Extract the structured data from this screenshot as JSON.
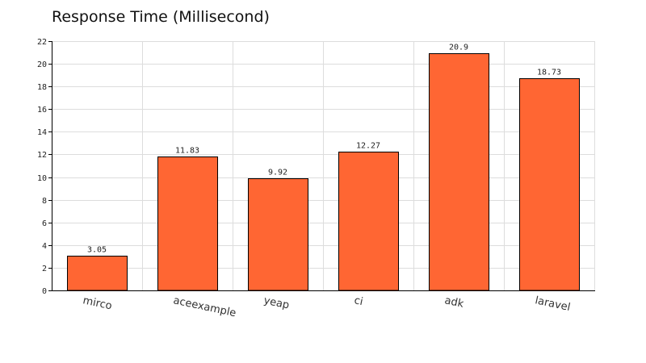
{
  "chart_data": {
    "type": "bar",
    "title": "Response Time (Millisecond)",
    "categories": [
      "mirco",
      "aceexample",
      "yeap",
      "ci",
      "adk",
      "laravel"
    ],
    "values": [
      3.05,
      11.83,
      9.92,
      12.27,
      20.9,
      18.73
    ],
    "data_labels": [
      "3.05",
      "11.83",
      "9.92",
      "12.27",
      "20.9",
      "18.73"
    ],
    "ylim": [
      0,
      22
    ],
    "yticks": [
      0,
      2,
      4,
      6,
      8,
      10,
      12,
      14,
      16,
      18,
      20,
      22
    ],
    "grid": true,
    "xlabel": "",
    "ylabel": "",
    "colors": {
      "bar_fill": "#ff6633",
      "bar_stroke": "#000000",
      "grid": "#dddddd",
      "axis": "#000000"
    }
  }
}
